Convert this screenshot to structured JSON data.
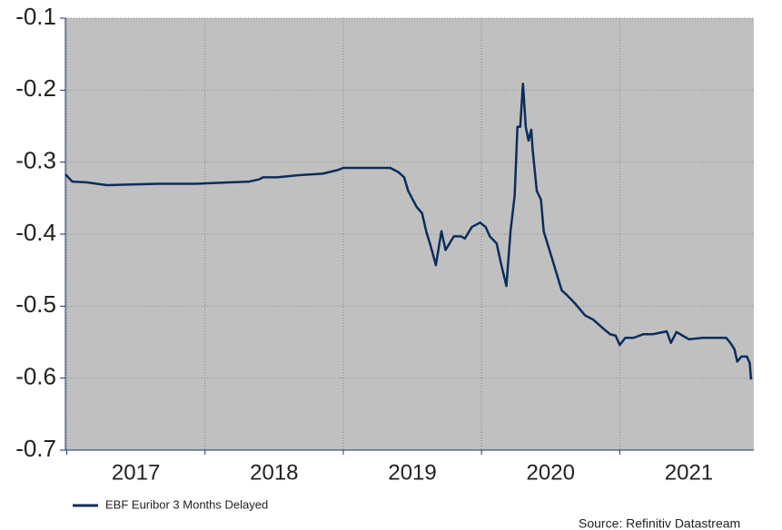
{
  "chart_data": {
    "type": "line",
    "legend": "EBF Euribor 3 Months Delayed",
    "source": "Source: Refinitiv Datastream",
    "x": [
      2016.99,
      2017.04,
      2017.14,
      2017.29,
      2017.47,
      2017.66,
      2017.93,
      2018.19,
      2018.32,
      2018.39,
      2018.42,
      2018.52,
      2018.68,
      2018.85,
      2018.96,
      2019.0,
      2019.21,
      2019.34,
      2019.4,
      2019.44,
      2019.47,
      2019.53,
      2019.57,
      2019.6,
      2019.63,
      2019.67,
      2019.71,
      2019.74,
      2019.8,
      2019.85,
      2019.88,
      2019.93,
      2019.99,
      2020.03,
      2020.06,
      2020.11,
      2020.14,
      2020.18,
      2020.21,
      2020.24,
      2020.26,
      2020.28,
      2020.3,
      2020.32,
      2020.34,
      2020.36,
      2020.37,
      2020.4,
      2020.43,
      2020.45,
      2020.52,
      2020.58,
      2020.62,
      2020.68,
      2020.75,
      2020.81,
      2020.88,
      2020.93,
      2020.97,
      2021.0,
      2021.04,
      2021.1,
      2021.17,
      2021.24,
      2021.34,
      2021.37,
      2021.41,
      2021.5,
      2021.6,
      2021.7,
      2021.77,
      2021.8,
      2021.83,
      2021.85,
      2021.88,
      2021.92,
      2021.94,
      2021.95
    ],
    "series": [
      {
        "name": "EBF Euribor 3 Months Delayed",
        "color": "#0b2d5b",
        "values": [
          -0.317,
          -0.327,
          -0.328,
          -0.332,
          -0.331,
          -0.33,
          -0.33,
          -0.328,
          -0.327,
          -0.324,
          -0.321,
          -0.321,
          -0.318,
          -0.316,
          -0.311,
          -0.308,
          -0.308,
          -0.308,
          -0.314,
          -0.321,
          -0.34,
          -0.362,
          -0.371,
          -0.396,
          -0.415,
          -0.443,
          -0.396,
          -0.422,
          -0.403,
          -0.403,
          -0.406,
          -0.39,
          -0.384,
          -0.39,
          -0.403,
          -0.413,
          -0.44,
          -0.472,
          -0.396,
          -0.346,
          -0.251,
          -0.251,
          -0.191,
          -0.251,
          -0.27,
          -0.255,
          -0.283,
          -0.34,
          -0.352,
          -0.396,
          -0.44,
          -0.478,
          -0.485,
          -0.497,
          -0.513,
          -0.519,
          -0.531,
          -0.539,
          -0.541,
          -0.554,
          -0.544,
          -0.544,
          -0.539,
          -0.539,
          -0.535,
          -0.551,
          -0.536,
          -0.546,
          -0.544,
          -0.544,
          -0.544,
          -0.551,
          -0.56,
          -0.577,
          -0.57,
          -0.57,
          -0.579,
          -0.602
        ]
      }
    ],
    "xlim": [
      2016.99,
      2021.97
    ],
    "xticks": [
      2017,
      2018,
      2019,
      2020,
      2021
    ],
    "xlabels": [
      {
        "value": 2017.5,
        "label": "2017"
      },
      {
        "value": 2018.5,
        "label": "2018"
      },
      {
        "value": 2019.5,
        "label": "2019"
      },
      {
        "value": 2020.5,
        "label": "2020"
      },
      {
        "value": 2021.5,
        "label": "2021"
      }
    ],
    "ylim": [
      -0.7,
      -0.1
    ],
    "yticks": [
      -0.1,
      -0.2,
      -0.3,
      -0.4,
      -0.5,
      -0.6,
      -0.7
    ],
    "grid": true,
    "plot_background": "#c0c0c0"
  }
}
